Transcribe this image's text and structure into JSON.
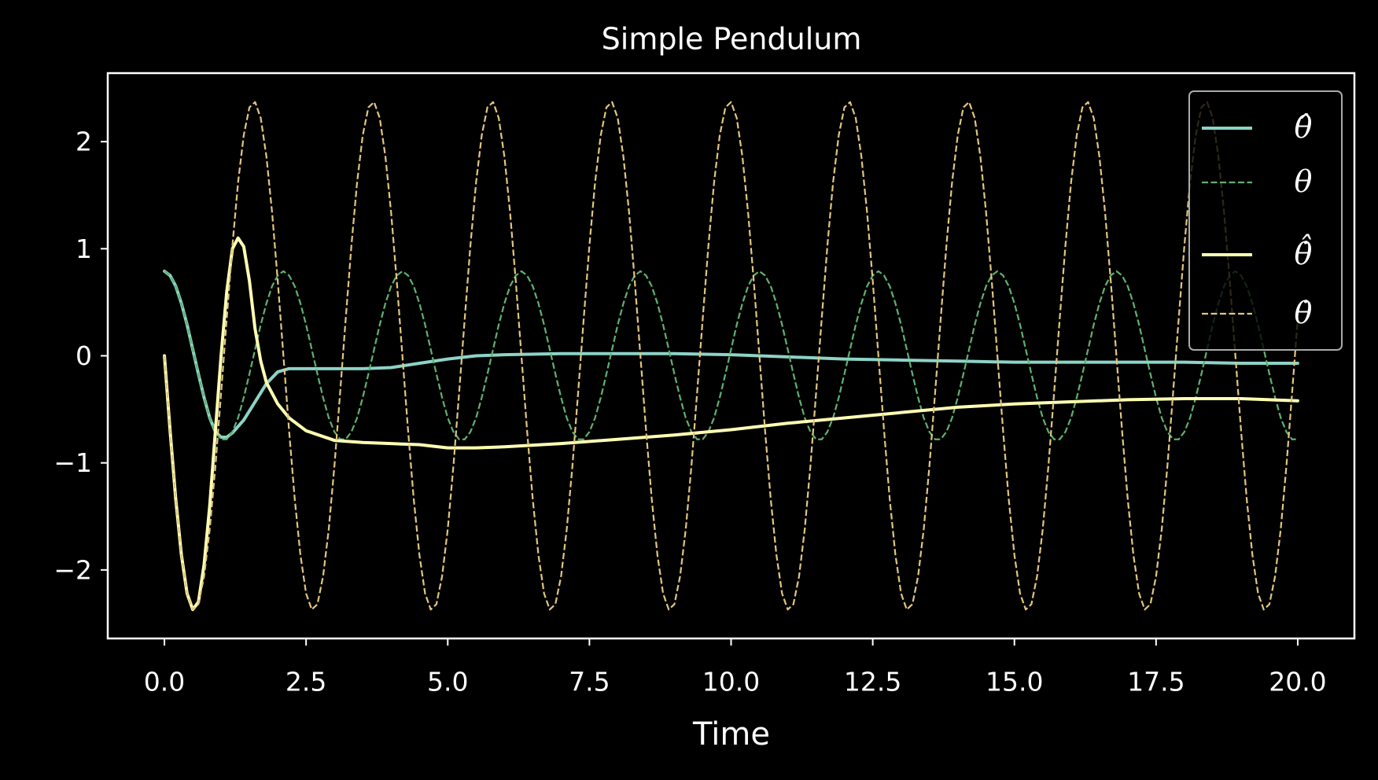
{
  "chart_data": {
    "type": "line",
    "title": "Simple Pendulum",
    "xlabel": "Time",
    "xlim": [
      -1,
      21
    ],
    "ylim": [
      -2.64,
      2.64
    ],
    "xticks": [
      {
        "value": 0,
        "label": "0.0"
      },
      2.5,
      {
        "value": 5,
        "label": "5.0"
      },
      7.5,
      {
        "value": 10,
        "label": "10.0"
      },
      12.5,
      {
        "value": 15,
        "label": "15.0"
      },
      17.5,
      {
        "value": 20,
        "label": "20.0"
      }
    ],
    "yticks": [
      {
        "value": -2,
        "label": "−2"
      },
      {
        "value": -1,
        "label": "−1"
      },
      0,
      1,
      2
    ],
    "grid": false,
    "legend": "upper right",
    "x": [
      0,
      0.1,
      0.2,
      0.3,
      0.4,
      0.5,
      0.6,
      0.7,
      0.8,
      0.9,
      1,
      1.1,
      1.2,
      1.3,
      1.4,
      1.5,
      1.6,
      1.7,
      1.8,
      1.9,
      2,
      2.1,
      2.2,
      2.3,
      2.4,
      2.5,
      2.6,
      2.7,
      2.8,
      2.9,
      3,
      3.1,
      3.2,
      3.3,
      3.4,
      3.5,
      3.6,
      3.7,
      3.8,
      3.9,
      4,
      4.1,
      4.2,
      4.3,
      4.4,
      4.5,
      4.6,
      4.7,
      4.8,
      4.9,
      5,
      5.1,
      5.2,
      5.3,
      5.4,
      5.5,
      5.6,
      5.7,
      5.8,
      5.9,
      6,
      6.1,
      6.2,
      6.3,
      6.4,
      6.5,
      6.6,
      6.7,
      6.8,
      6.9,
      7,
      7.1,
      7.2,
      7.3,
      7.4,
      7.5,
      7.6,
      7.7,
      7.8,
      7.9,
      8,
      8.1,
      8.2,
      8.3,
      8.4,
      8.5,
      8.6,
      8.7,
      8.8,
      8.9,
      9,
      9.1,
      9.2,
      9.3,
      9.4,
      9.5,
      9.6,
      9.7,
      9.8,
      9.9,
      10,
      10.1,
      10.2,
      10.3,
      10.4,
      10.5,
      10.6,
      10.7,
      10.8,
      10.9,
      11,
      11.1,
      11.2,
      11.3,
      11.4,
      11.5,
      11.6,
      11.7,
      11.8,
      11.9,
      12,
      12.1,
      12.2,
      12.3,
      12.4,
      12.5,
      12.6,
      12.7,
      12.8,
      12.9,
      13,
      13.1,
      13.2,
      13.3,
      13.4,
      13.5,
      13.6,
      13.7,
      13.8,
      13.9,
      14,
      14.1,
      14.2,
      14.3,
      14.4,
      14.5,
      14.6,
      14.7,
      14.8,
      14.9,
      15,
      15.1,
      15.2,
      15.3,
      15.4,
      15.5,
      15.6,
      15.7,
      15.8,
      15.9,
      16,
      16.1,
      16.2,
      16.3,
      16.4,
      16.5,
      16.6,
      16.7,
      16.8,
      16.9,
      17,
      17.1,
      17.2,
      17.3,
      17.4,
      17.5,
      17.6,
      17.7,
      17.8,
      17.9,
      18,
      18.1,
      18.2,
      18.3,
      18.4,
      18.5,
      18.6,
      18.7,
      18.8,
      18.9,
      19,
      19.1,
      19.2,
      19.3,
      19.4,
      19.5,
      19.6,
      19.7,
      19.8,
      19.9,
      20
    ],
    "series": [
      {
        "name": "θ̂",
        "color": "#8dd3c7",
        "linestyle": "solid",
        "x": [
          0,
          0.1,
          0.2,
          0.3,
          0.4,
          0.5,
          0.6,
          0.7,
          0.8,
          0.9,
          1,
          1.1,
          1.2,
          1.4,
          1.6,
          1.8,
          2,
          2.2,
          2.5,
          3,
          3.5,
          4,
          4.5,
          5,
          5.5,
          6,
          7,
          8,
          9,
          10,
          11,
          12,
          13,
          14,
          15,
          16,
          17,
          18,
          19,
          20
        ],
        "values": [
          0.79,
          0.75,
          0.65,
          0.49,
          0.29,
          0.06,
          -0.17,
          -0.39,
          -0.58,
          -0.71,
          -0.76,
          -0.76,
          -0.72,
          -0.6,
          -0.43,
          -0.26,
          -0.15,
          -0.12,
          -0.12,
          -0.12,
          -0.12,
          -0.11,
          -0.07,
          -0.03,
          0,
          0.01,
          0.02,
          0.02,
          0.02,
          0.01,
          -0.01,
          -0.03,
          -0.04,
          -0.05,
          -0.06,
          -0.06,
          -0.06,
          -0.06,
          -0.07,
          -0.07
        ]
      },
      {
        "name": "θ",
        "color": "#5fb26f",
        "linestyle": "dashed",
        "values": [
          0.79,
          0.75,
          0.65,
          0.49,
          0.29,
          0.06,
          -0.17,
          -0.39,
          -0.58,
          -0.71,
          -0.78,
          -0.78,
          -0.71,
          -0.58,
          -0.39,
          -0.17,
          0.06,
          0.29,
          0.49,
          0.65,
          0.75,
          0.79,
          0.75,
          0.65,
          0.49,
          0.29,
          0.06,
          -0.17,
          -0.39,
          -0.58,
          -0.71,
          -0.78,
          -0.78,
          -0.71,
          -0.58,
          -0.39,
          -0.17,
          0.06,
          0.29,
          0.49,
          0.65,
          0.75,
          0.79,
          0.75,
          0.65,
          0.49,
          0.29,
          0.06,
          -0.17,
          -0.39,
          -0.58,
          -0.71,
          -0.78,
          -0.78,
          -0.71,
          -0.58,
          -0.39,
          -0.17,
          0.06,
          0.29,
          0.49,
          0.65,
          0.75,
          0.79,
          0.75,
          0.65,
          0.49,
          0.29,
          0.06,
          -0.17,
          -0.39,
          -0.58,
          -0.71,
          -0.78,
          -0.78,
          -0.71,
          -0.58,
          -0.39,
          -0.17,
          0.06,
          0.29,
          0.49,
          0.65,
          0.75,
          0.79,
          0.75,
          0.65,
          0.49,
          0.29,
          0.06,
          -0.17,
          -0.39,
          -0.58,
          -0.71,
          -0.78,
          -0.78,
          -0.71,
          -0.58,
          -0.39,
          -0.17,
          0.06,
          0.29,
          0.49,
          0.65,
          0.75,
          0.79,
          0.75,
          0.65,
          0.49,
          0.29,
          0.06,
          -0.17,
          -0.39,
          -0.58,
          -0.71,
          -0.78,
          -0.78,
          -0.71,
          -0.58,
          -0.39,
          -0.17,
          0.06,
          0.29,
          0.49,
          0.65,
          0.75,
          0.79,
          0.75,
          0.65,
          0.49,
          0.29,
          0.06,
          -0.17,
          -0.39,
          -0.58,
          -0.71,
          -0.78,
          -0.78,
          -0.71,
          -0.58,
          -0.39,
          -0.17,
          0.06,
          0.29,
          0.49,
          0.65,
          0.75,
          0.79,
          0.75,
          0.65,
          0.49,
          0.29,
          0.06,
          -0.17,
          -0.39,
          -0.58,
          -0.71,
          -0.78,
          -0.78,
          -0.71,
          -0.58,
          -0.39,
          -0.17,
          0.06,
          0.29,
          0.49,
          0.65,
          0.75,
          0.79,
          0.75,
          0.65,
          0.49,
          0.29,
          0.06,
          -0.17,
          -0.39,
          -0.58,
          -0.71,
          -0.78,
          -0.78,
          -0.71,
          -0.58,
          -0.39,
          -0.17,
          0.06,
          0.29,
          0.49,
          0.65,
          0.75,
          0.79,
          0.75,
          0.65,
          0.49,
          0.29,
          0.06,
          -0.17,
          -0.39,
          -0.58,
          -0.71,
          -0.78,
          -0.78
        ]
      },
      {
        "name": "θ̇̂",
        "color": "#ffffb3",
        "linestyle": "solid",
        "x": [
          0,
          0.1,
          0.2,
          0.3,
          0.4,
          0.5,
          0.6,
          0.7,
          0.8,
          0.9,
          1,
          1.1,
          1.2,
          1.3,
          1.4,
          1.5,
          1.6,
          1.7,
          1.8,
          2,
          2.2,
          2.5,
          3,
          3.5,
          4,
          4.5,
          5,
          5.5,
          6,
          7,
          8,
          9,
          10,
          11,
          12,
          13,
          14,
          15,
          16,
          17,
          18,
          19,
          20
        ],
        "values": [
          0,
          -0.7,
          -1.34,
          -1.86,
          -2.22,
          -2.37,
          -2.3,
          -1.95,
          -1.4,
          -0.7,
          0,
          0.6,
          1,
          1.1,
          1.02,
          0.7,
          0.25,
          -0.05,
          -0.25,
          -0.45,
          -0.58,
          -0.7,
          -0.79,
          -0.81,
          -0.82,
          -0.83,
          -0.86,
          -0.86,
          -0.85,
          -0.82,
          -0.78,
          -0.74,
          -0.69,
          -0.63,
          -0.58,
          -0.53,
          -0.48,
          -0.45,
          -0.43,
          -0.41,
          -0.4,
          -0.4,
          -0.42
        ]
      },
      {
        "name": "θ̇",
        "color": "#e1c67e",
        "linestyle": "dashed",
        "values": [
          0,
          -0.7,
          -1.34,
          -1.86,
          -2.22,
          -2.37,
          -2.32,
          -2.06,
          -1.62,
          -1.03,
          -0.35,
          0.35,
          1.03,
          1.62,
          2.06,
          2.32,
          2.37,
          2.22,
          1.86,
          1.34,
          0.7,
          0,
          -0.7,
          -1.34,
          -1.86,
          -2.22,
          -2.37,
          -2.32,
          -2.06,
          -1.62,
          -1.03,
          -0.35,
          0.35,
          1.03,
          1.62,
          2.06,
          2.32,
          2.37,
          2.22,
          1.86,
          1.34,
          0.7,
          0,
          -0.7,
          -1.34,
          -1.86,
          -2.22,
          -2.37,
          -2.32,
          -2.06,
          -1.62,
          -1.03,
          -0.35,
          0.35,
          1.03,
          1.62,
          2.06,
          2.32,
          2.37,
          2.22,
          1.86,
          1.34,
          0.7,
          0,
          -0.7,
          -1.34,
          -1.86,
          -2.22,
          -2.37,
          -2.32,
          -2.06,
          -1.62,
          -1.03,
          -0.35,
          0.35,
          1.03,
          1.62,
          2.06,
          2.32,
          2.37,
          2.22,
          1.86,
          1.34,
          0.7,
          0,
          -0.7,
          -1.34,
          -1.86,
          -2.22,
          -2.37,
          -2.32,
          -2.06,
          -1.62,
          -1.03,
          -0.35,
          0.35,
          1.03,
          1.62,
          2.06,
          2.32,
          2.37,
          2.22,
          1.86,
          1.34,
          0.7,
          0,
          -0.7,
          -1.34,
          -1.86,
          -2.22,
          -2.37,
          -2.32,
          -2.06,
          -1.62,
          -1.03,
          -0.35,
          0.35,
          1.03,
          1.62,
          2.06,
          2.32,
          2.37,
          2.22,
          1.86,
          1.34,
          0.7,
          0,
          -0.7,
          -1.34,
          -1.86,
          -2.22,
          -2.37,
          -2.32,
          -2.06,
          -1.62,
          -1.03,
          -0.35,
          0.35,
          1.03,
          1.62,
          2.06,
          2.32,
          2.37,
          2.22,
          1.86,
          1.34,
          0.7,
          0,
          -0.7,
          -1.34,
          -1.86,
          -2.22,
          -2.37,
          -2.32,
          -2.06,
          -1.62,
          -1.03,
          -0.35,
          0.35,
          1.03,
          1.62,
          2.06,
          2.32,
          2.37,
          2.22,
          1.86,
          1.34,
          0.7,
          0,
          -0.7,
          -1.34,
          -1.86,
          -2.22,
          -2.37,
          -2.32,
          -2.06,
          -1.62,
          -1.03,
          -0.35,
          0.35,
          1.03,
          1.62,
          2.06,
          2.32,
          2.37,
          2.22,
          1.86,
          1.34,
          0.7,
          0,
          -0.7,
          -1.34,
          -1.86,
          -2.22,
          -2.37,
          -2.32,
          -2.06,
          -1.62,
          -1.03,
          -0.35,
          0.35
        ]
      }
    ]
  }
}
